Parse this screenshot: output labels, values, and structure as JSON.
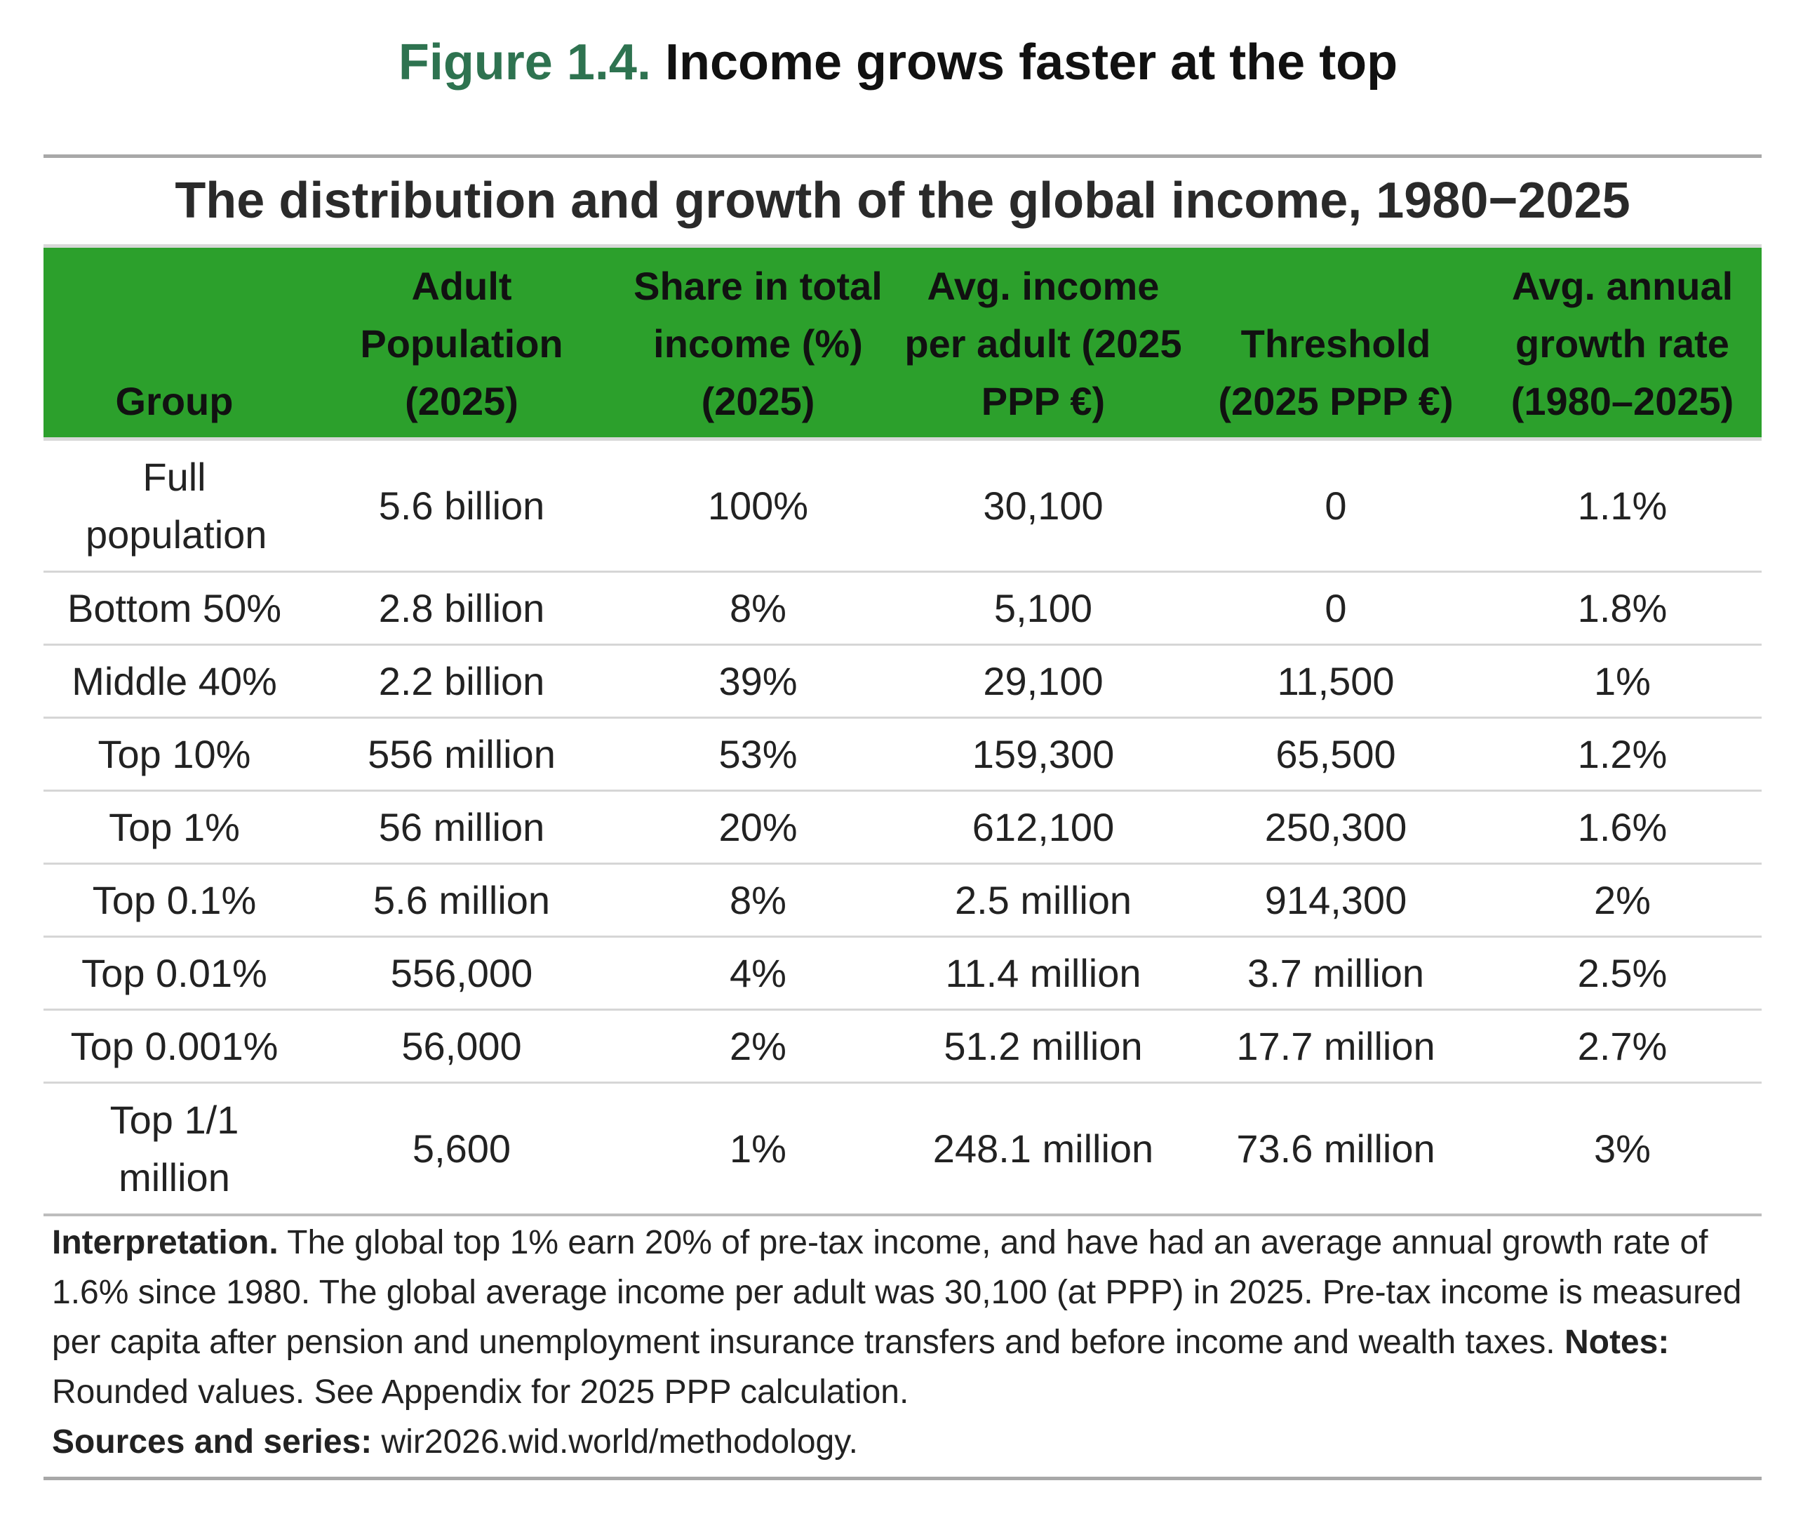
{
  "figure": {
    "number": "Figure 1.4.",
    "title": "Income grows faster at the top",
    "accent_color": "#2e7350"
  },
  "table": {
    "title": "The distribution and growth of the global income, 1980−2025",
    "header_color": "#2ca02c",
    "columns": [
      "Group",
      "Adult Population (2025)",
      "Share in total income (%) (2025)",
      "Avg. income per adult (2025 PPP €)",
      "Threshold (2025 PPP €)",
      "Avg. annual growth rate (1980–2025)"
    ],
    "rows": [
      [
        "Full population",
        "5.6 billion",
        "100%",
        "30,100",
        "0",
        "1.1%"
      ],
      [
        "Bottom 50%",
        "2.8 billion",
        "8%",
        "5,100",
        "0",
        "1.8%"
      ],
      [
        "Middle 40%",
        "2.2 billion",
        "39%",
        "29,100",
        "11,500",
        "1%"
      ],
      [
        "Top 10%",
        "556 million",
        "53%",
        "159,300",
        "65,500",
        "1.2%"
      ],
      [
        "Top 1%",
        "56 million",
        "20%",
        "612,100",
        "250,300",
        "1.6%"
      ],
      [
        "Top 0.1%",
        "5.6 million",
        "8%",
        "2.5 million",
        "914,300",
        "2%"
      ],
      [
        "Top 0.01%",
        "556,000",
        "4%",
        "11.4 million",
        "3.7 million",
        "2.5%"
      ],
      [
        "Top 0.001%",
        "56,000",
        "2%",
        "51.2 million",
        "17.7 million",
        "2.7%"
      ],
      [
        "Top 1/1 million",
        "5,600",
        "1%",
        "248.1 million",
        "73.6 million",
        "3%"
      ]
    ]
  },
  "notes": {
    "interpretation_label": "Interpretation.",
    "interpretation_text": " The global top 1% earn 20% of pre-tax income, and have had an average annual growth rate of 1.6% since 1980. The global average income per adult was 30,100 (at PPP) in 2025. Pre-tax income is measured per capita after pension and unemployment insurance transfers and before income and wealth taxes. ",
    "notes_label": "Notes:",
    "notes_text": " Rounded values. See Appendix for 2025 PPP calculation.",
    "sources_label": "Sources and series:",
    "sources_text": " wir2026.wid.world/methodology."
  }
}
